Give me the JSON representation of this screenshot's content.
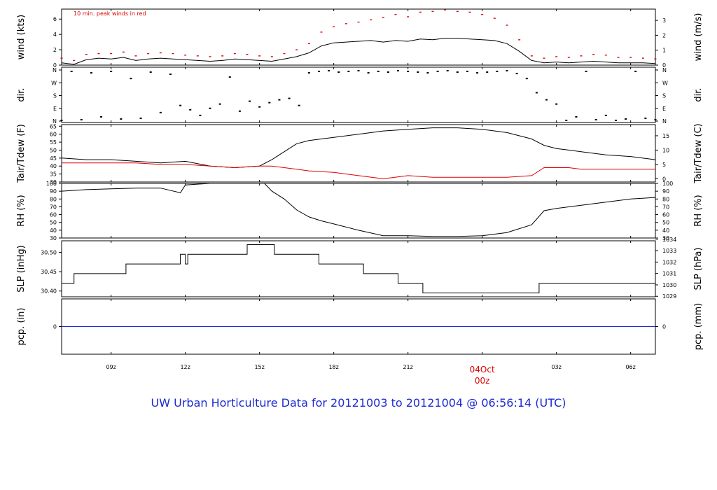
{
  "title": "UW Urban Horticulture Data for 20121003  to  20121004 @ 06:56:14  (UTC)",
  "annotation": "10 min. peak winds in red",
  "x_ticks": [
    "09z",
    "12z",
    "15z",
    "18z",
    "21z",
    "04Oct",
    "00z",
    "03z",
    "06z"
  ],
  "colors": {
    "frame": "#000000",
    "primary": "#000000",
    "secondary": "#dd0000",
    "precip": "#1c2bd0",
    "title": "#1c2bd0",
    "date_label": "#dd0000"
  },
  "chart_data": [
    {
      "type": "line",
      "name": "wind",
      "ylabel": "wind (kts)",
      "ylabel_right": "wind (m/s)",
      "ylim": [
        0,
        7.3
      ],
      "yticks_left": [
        0,
        2,
        4,
        6
      ],
      "yticks_right": [
        0,
        1,
        2,
        3
      ],
      "series": [
        {
          "name": "wind speed",
          "color": "#000000",
          "x": [
            7.0,
            7.5,
            8.0,
            8.5,
            9.0,
            9.5,
            10.0,
            10.5,
            11.0,
            11.5,
            12.0,
            12.5,
            13.0,
            13.5,
            14.0,
            14.5,
            15.0,
            15.5,
            16.0,
            16.5,
            17.0,
            17.5,
            18.0,
            18.5,
            19.0,
            19.5,
            20.0,
            20.5,
            21.0,
            21.5,
            22.0,
            22.5,
            23.0,
            23.5,
            24.0,
            24.5,
            25.0,
            25.5,
            26.0,
            26.5,
            27.0,
            27.5,
            28.0,
            28.5,
            29.0,
            29.5,
            30.0,
            30.5,
            31.0
          ],
          "y": [
            0.3,
            0.1,
            0.7,
            0.9,
            0.8,
            1.0,
            0.6,
            0.8,
            0.9,
            0.8,
            0.7,
            0.6,
            0.5,
            0.6,
            0.8,
            0.7,
            0.6,
            0.5,
            0.8,
            1.1,
            1.6,
            2.5,
            2.9,
            3.0,
            3.1,
            3.2,
            3.0,
            3.2,
            3.1,
            3.4,
            3.3,
            3.5,
            3.5,
            3.4,
            3.3,
            3.2,
            2.8,
            1.8,
            0.6,
            0.3,
            0.4,
            0.3,
            0.4,
            0.5,
            0.4,
            0.3,
            0.3,
            0.3,
            0.2
          ]
        },
        {
          "name": "10 min. peak winds",
          "color": "#dd0000",
          "x": [
            7.0,
            7.5,
            8.0,
            8.5,
            9.0,
            9.5,
            10.0,
            10.5,
            11.0,
            11.5,
            12.0,
            12.5,
            13.0,
            13.5,
            14.0,
            14.5,
            15.0,
            15.5,
            16.0,
            16.5,
            17.0,
            17.5,
            18.0,
            18.5,
            19.0,
            19.5,
            20.0,
            20.5,
            21.0,
            21.5,
            22.0,
            22.5,
            23.0,
            23.5,
            24.0,
            24.5,
            25.0,
            25.5,
            26.0,
            26.5,
            27.0,
            27.5,
            28.0,
            28.5,
            29.0,
            29.5,
            30.0,
            30.5,
            31.0
          ],
          "y": [
            0.9,
            0.6,
            1.4,
            1.5,
            1.5,
            1.7,
            1.2,
            1.5,
            1.6,
            1.5,
            1.3,
            1.2,
            1.1,
            1.2,
            1.5,
            1.4,
            1.2,
            1.1,
            1.5,
            2.0,
            2.8,
            4.3,
            5.0,
            5.4,
            5.6,
            5.9,
            6.2,
            6.6,
            6.3,
            6.9,
            7.0,
            7.2,
            7.0,
            6.9,
            6.6,
            6.1,
            5.2,
            3.3,
            1.2,
            0.9,
            1.1,
            1.0,
            1.2,
            1.4,
            1.3,
            1.0,
            1.0,
            0.9,
            0.8
          ]
        }
      ]
    },
    {
      "type": "scatter",
      "name": "dir",
      "ylabel": "dir.",
      "ylabel_right": "dir.",
      "ylim": [
        0,
        360
      ],
      "yticks": [
        0,
        90,
        180,
        270,
        360
      ],
      "ytick_labels": [
        "N",
        "E",
        "S",
        "W",
        "N"
      ],
      "series": [
        {
          "name": "wind direction",
          "color": "#000000",
          "x": [
            7.0,
            7.4,
            7.8,
            8.2,
            8.6,
            9.0,
            9.4,
            9.8,
            10.2,
            10.6,
            11.0,
            11.4,
            11.8,
            12.2,
            12.6,
            13.0,
            13.4,
            13.8,
            14.2,
            14.6,
            15.0,
            15.4,
            15.8,
            16.2,
            16.6,
            17.0,
            17.4,
            17.8,
            18.2,
            18.6,
            19.0,
            19.4,
            19.8,
            20.2,
            20.6,
            21.0,
            21.4,
            21.8,
            22.2,
            22.6,
            23.0,
            23.4,
            23.8,
            24.2,
            24.6,
            25.0,
            25.4,
            25.8,
            26.2,
            26.6,
            27.0,
            27.4,
            27.8,
            28.2,
            28.6,
            29.0,
            29.4,
            29.8,
            30.2,
            30.6,
            31.0
          ],
          "y": [
            5,
            350,
            10,
            340,
            30,
            350,
            15,
            300,
            20,
            345,
            60,
            330,
            110,
            80,
            40,
            90,
            120,
            310,
            70,
            140,
            100,
            130,
            150,
            160,
            110,
            340,
            350,
            355,
            345,
            350,
            355,
            340,
            350,
            345,
            355,
            350,
            345,
            340,
            350,
            355,
            345,
            350,
            340,
            345,
            350,
            355,
            335,
            300,
            200,
            150,
            120,
            5,
            30,
            350,
            10,
            40,
            5,
            15,
            350,
            20,
            10
          ]
        }
      ]
    },
    {
      "type": "line",
      "name": "temp",
      "ylabel": "Tair/Tdew (F)",
      "ylabel_right": "Tair/Tdew (C)",
      "ylim": [
        30,
        66
      ],
      "yticks_left": [
        30,
        35,
        40,
        45,
        50,
        55,
        60,
        65
      ],
      "yticks_right": [
        0,
        5,
        10,
        15
      ],
      "series": [
        {
          "name": "Tair",
          "color": "#000000",
          "x": [
            7.0,
            8.0,
            9.0,
            10.0,
            11.0,
            12.0,
            13.0,
            14.0,
            15.0,
            15.5,
            16.0,
            16.5,
            17.0,
            18.0,
            19.0,
            20.0,
            21.0,
            22.0,
            23.0,
            24.0,
            25.0,
            26.0,
            26.5,
            27.0,
            27.5,
            28.0,
            28.5,
            29.0,
            30.0,
            31.0
          ],
          "y": [
            45,
            44,
            44,
            43,
            42,
            43,
            40,
            39,
            40,
            44,
            49,
            54,
            56,
            58,
            60,
            62,
            63,
            64,
            64,
            63,
            61,
            57,
            53,
            51,
            50,
            49,
            48,
            47,
            46,
            44
          ]
        },
        {
          "name": "Tdew",
          "color": "#dd0000",
          "x": [
            7.0,
            8.0,
            9.0,
            10.0,
            11.0,
            12.0,
            13.0,
            14.0,
            15.0,
            15.5,
            16.0,
            16.5,
            17.0,
            18.0,
            19.0,
            20.0,
            21.0,
            22.0,
            23.0,
            24.0,
            25.0,
            26.0,
            26.5,
            27.0,
            27.5,
            28.0,
            28.5,
            29.0,
            30.0,
            31.0
          ],
          "y": [
            42,
            42,
            42,
            42,
            41,
            41,
            40,
            39,
            40,
            40,
            39,
            38,
            37,
            36,
            34,
            32,
            34,
            33,
            33,
            33,
            33,
            34,
            39,
            39,
            39,
            38,
            38,
            38,
            38,
            38
          ]
        }
      ]
    },
    {
      "type": "line",
      "name": "rh",
      "ylabel": "RH (%)",
      "ylabel_right": "RH (%)",
      "ylim": [
        30,
        100
      ],
      "yticks": [
        30,
        40,
        50,
        60,
        70,
        80,
        90,
        100
      ],
      "series": [
        {
          "name": "RH",
          "color": "#000000",
          "x": [
            7.0,
            8.0,
            9.0,
            10.0,
            11.0,
            11.8,
            12.0,
            12.5,
            13.0,
            14.0,
            15.0,
            15.2,
            15.5,
            16.0,
            16.5,
            17.0,
            17.5,
            18.0,
            19.0,
            20.0,
            21.0,
            22.0,
            23.0,
            24.0,
            25.0,
            26.0,
            26.5,
            27.0,
            28.0,
            29.0,
            30.0,
            31.0
          ],
          "y": [
            90,
            92,
            93,
            94,
            94,
            88,
            98,
            99,
            100,
            100,
            100,
            100,
            90,
            80,
            66,
            57,
            52,
            48,
            40,
            33,
            33,
            32,
            32,
            33,
            37,
            47,
            65,
            68,
            72,
            76,
            80,
            82
          ]
        }
      ]
    },
    {
      "type": "line",
      "name": "slp",
      "ylabel": "SLP (inHg)",
      "ylabel_right": "SLP (hPa)",
      "ylim": [
        30.385,
        30.53
      ],
      "yticks_left": [
        30.4,
        30.45,
        30.5
      ],
      "ytick_labels_left": [
        "30.40",
        "30.45",
        "30.50"
      ],
      "yticks_right_hpa": [
        1029,
        1030,
        1031,
        1032,
        1033,
        1034
      ],
      "series": [
        {
          "name": "SLP",
          "color": "#000000",
          "x": [
            7.0,
            7.5,
            7.5,
            9.6,
            9.6,
            11.8,
            11.8,
            12.0,
            12.0,
            12.1,
            12.1,
            13.0,
            13.0,
            14.5,
            14.5,
            15.6,
            15.6,
            17.4,
            17.4,
            19.2,
            19.2,
            20.6,
            20.6,
            21.6,
            21.6,
            26.3,
            26.3,
            31.0
          ],
          "y": [
            30.42,
            30.42,
            30.445,
            30.445,
            30.47,
            30.47,
            30.495,
            30.495,
            30.47,
            30.47,
            30.495,
            30.495,
            30.495,
            30.495,
            30.52,
            30.52,
            30.495,
            30.495,
            30.47,
            30.47,
            30.445,
            30.445,
            30.42,
            30.42,
            30.395,
            30.395,
            30.42,
            30.42
          ]
        }
      ]
    },
    {
      "type": "line",
      "name": "pcp",
      "ylabel": "pcp. (in)",
      "ylabel_right": "pcp. (mm)",
      "ylim": [
        -1,
        1
      ],
      "yticks": [
        0
      ],
      "series": [
        {
          "name": "precip",
          "color": "#1c2bd0",
          "x": [
            7.0,
            31.0
          ],
          "y": [
            0,
            0
          ]
        }
      ]
    }
  ]
}
